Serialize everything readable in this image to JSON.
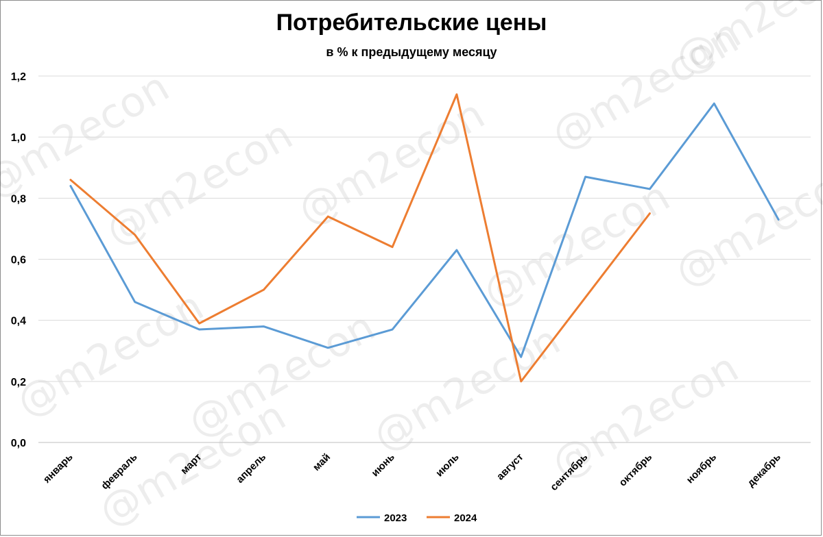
{
  "watermark": "@m2econ",
  "chart_data": {
    "type": "line",
    "title": "Потребительские цены",
    "subtitle": "в % к предыдущему месяцу",
    "xlabel": "",
    "ylabel": "",
    "ylim": [
      0,
      1.2
    ],
    "yticks": [
      "0,0",
      "0,2",
      "0,4",
      "0,6",
      "0,8",
      "1,0",
      "1,2"
    ],
    "grid": true,
    "legend_position": "bottom",
    "categories": [
      "январь",
      "февраль",
      "март",
      "апрель",
      "май",
      "июнь",
      "июль",
      "август",
      "сентябрь",
      "октябрь",
      "ноябрь",
      "декабрь"
    ],
    "series": [
      {
        "name": "2023",
        "color": "#5b9bd5",
        "values": [
          0.84,
          0.46,
          0.37,
          0.38,
          0.31,
          0.37,
          0.63,
          0.28,
          0.87,
          0.83,
          1.11,
          0.73
        ]
      },
      {
        "name": "2024",
        "color": "#ed7d31",
        "values": [
          0.86,
          0.68,
          0.39,
          0.5,
          0.74,
          0.64,
          1.14,
          0.2,
          null,
          0.75,
          null,
          null
        ]
      }
    ]
  }
}
